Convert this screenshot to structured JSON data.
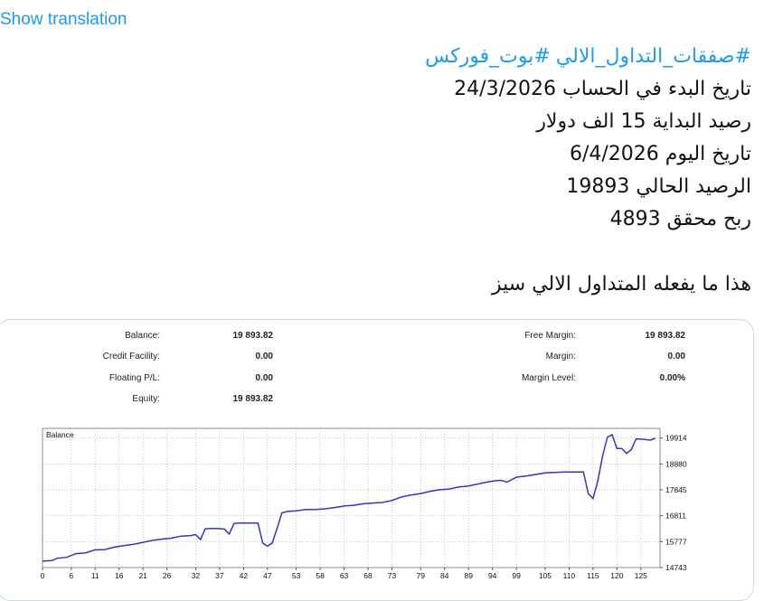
{
  "translate_link": "Show translation",
  "post": {
    "hashtags": [
      "#صفقات_التداول_الالي",
      "#بوت_فوركس"
    ],
    "lines": [
      "تاريخ البدء في الحساب 24/3/2026",
      "رصيد البداية 15 الف دولار",
      "تاريخ اليوم 6/4/2026",
      "الرصيد الحالي 19893",
      "ربح محقق 4893"
    ],
    "closing_line": "هذا ما يفعله المتداول الالي سيز"
  },
  "account": {
    "left": [
      {
        "label": "Balance:",
        "value": "19 893.82"
      },
      {
        "label": "Credit Facility:",
        "value": "0.00"
      },
      {
        "label": "Floating P/L:",
        "value": "0.00"
      },
      {
        "label": "Equity:",
        "value": "19 893.82"
      }
    ],
    "right": [
      {
        "label": "Free Margin:",
        "value": "19 893.82"
      },
      {
        "label": "Margin:",
        "value": "0.00"
      },
      {
        "label": "Margin Level:",
        "value": "0.00%"
      }
    ]
  },
  "colors": {
    "link": "#1d9bf0",
    "series": "#3535c0",
    "grid": "#9aa0d0"
  },
  "chart_data": {
    "type": "line",
    "title": "Balance",
    "xlabel": "",
    "ylabel": "",
    "xlim": [
      0,
      129
    ],
    "ylim": [
      14743,
      20300
    ],
    "x_ticks": [
      0,
      6,
      11,
      16,
      21,
      26,
      32,
      37,
      42,
      47,
      53,
      58,
      63,
      68,
      73,
      79,
      84,
      89,
      94,
      99,
      105,
      110,
      115,
      120,
      125
    ],
    "y_ticks": [
      14743,
      15777,
      16811,
      17845,
      18880,
      19914
    ],
    "grid": true,
    "series": [
      {
        "x": [
          0,
          2,
          3,
          5,
          7,
          9,
          11,
          13,
          15,
          17,
          19,
          21,
          23,
          25,
          27,
          29,
          31,
          32,
          33,
          34,
          36,
          38,
          39,
          40,
          41,
          45,
          46,
          47,
          48,
          49,
          50,
          51,
          53,
          55,
          57,
          59,
          61,
          63,
          65,
          67,
          69,
          71,
          73,
          75,
          77,
          79,
          81,
          83,
          85,
          87,
          89,
          91,
          93,
          95,
          96,
          97,
          99,
          101,
          103,
          105,
          109,
          110,
          111,
          113,
          114,
          115,
          116,
          117,
          118,
          119,
          120,
          121,
          122,
          123,
          124,
          125,
          127,
          128
        ],
        "y": [
          15000,
          15020,
          15110,
          15150,
          15300,
          15330,
          15450,
          15460,
          15560,
          15620,
          15670,
          15750,
          15830,
          15880,
          15920,
          16000,
          16020,
          16060,
          15860,
          16290,
          16310,
          16280,
          16080,
          16500,
          16520,
          16520,
          15720,
          15600,
          15720,
          16300,
          16920,
          16980,
          17010,
          17060,
          17060,
          17090,
          17140,
          17200,
          17230,
          17290,
          17320,
          17340,
          17420,
          17560,
          17640,
          17700,
          17790,
          17850,
          17880,
          17960,
          18000,
          18080,
          18160,
          18220,
          18220,
          18150,
          18350,
          18400,
          18460,
          18520,
          18560,
          18560,
          18560,
          18560,
          17700,
          17500,
          18200,
          19200,
          19950,
          20050,
          19500,
          19500,
          19300,
          19450,
          19880,
          19870,
          19830,
          19910
        ]
      }
    ]
  }
}
